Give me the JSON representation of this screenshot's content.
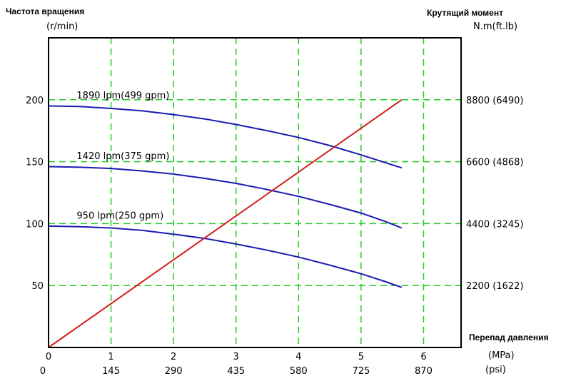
{
  "chart_data": {
    "type": "line",
    "left_axis": {
      "title": "Частота вращения",
      "unit": "(r/min)",
      "range": [
        0,
        250
      ],
      "ticks": [
        50,
        100,
        150,
        200
      ],
      "tick_labels": [
        "50",
        "100",
        "150",
        "200"
      ]
    },
    "right_axis": {
      "title": "Крутящий момент",
      "unit": "N.m(ft.lb)",
      "range": [
        0,
        11000
      ],
      "ticks": [
        2200,
        4400,
        6600,
        8800
      ],
      "tick_labels": [
        "2200 (1622)",
        "4400 (3245)",
        "6600 (4868)",
        "8800 (6490)"
      ]
    },
    "x_axis": {
      "title": "Перепад давления",
      "range": [
        0,
        6.6
      ],
      "ticks": [
        0,
        1,
        2,
        3,
        4,
        5,
        6
      ],
      "tick_labels_mpa": [
        "0",
        "1",
        "2",
        "3",
        "4",
        "5",
        "6"
      ],
      "tick_labels_psi": [
        "0",
        "145",
        "290",
        "435",
        "580",
        "725",
        "870"
      ],
      "unit_mpa": "(MPa)",
      "unit_psi": "(psi)"
    },
    "grid": true,
    "grid_style": "dashed-green",
    "series": [
      {
        "name": "1890 lpm(499 gpm)",
        "axis": "left",
        "color": "#1a1ab4",
        "x": [
          0,
          0.5,
          1,
          1.5,
          2,
          2.5,
          3,
          3.5,
          4,
          4.5,
          5,
          5.4,
          5.65
        ],
        "y": [
          195,
          194.5,
          193,
          191,
          188,
          184.5,
          180,
          175,
          169.5,
          163,
          155.5,
          149,
          145
        ]
      },
      {
        "name": "1420 lpm(375 gpm)",
        "axis": "left",
        "color": "#1a1ab4",
        "x": [
          0,
          0.5,
          1,
          1.5,
          2,
          2.5,
          3,
          3.5,
          4,
          4.5,
          5,
          5.4,
          5.65
        ],
        "y": [
          146,
          145.5,
          144.5,
          142.5,
          140,
          136.5,
          132.5,
          127.5,
          122,
          115.5,
          108.5,
          101.5,
          96.5
        ]
      },
      {
        "name": "950 lpm(250 gpm)",
        "axis": "left",
        "color": "#1a1ab4",
        "x": [
          0,
          0.5,
          1,
          1.5,
          2,
          2.5,
          3,
          3.5,
          4,
          4.5,
          5,
          5.4,
          5.65
        ],
        "y": [
          98,
          97.5,
          96.5,
          94.5,
          91.5,
          88,
          83.5,
          78.5,
          73,
          66.5,
          59.5,
          53,
          48.5
        ]
      },
      {
        "name": "",
        "axis": "right",
        "color": "#d21e1e",
        "x": [
          0,
          5.65
        ],
        "y": [
          0,
          8800
        ]
      }
    ],
    "series_label_positions": [
      {
        "text": "1890 lpm(499 gpm)",
        "x": 0.45,
        "y": 201
      },
      {
        "text": "1420 lpm(375 gpm)",
        "x": 0.45,
        "y": 152
      },
      {
        "text": "950 lpm(250 gpm)",
        "x": 0.45,
        "y": 104
      }
    ]
  }
}
